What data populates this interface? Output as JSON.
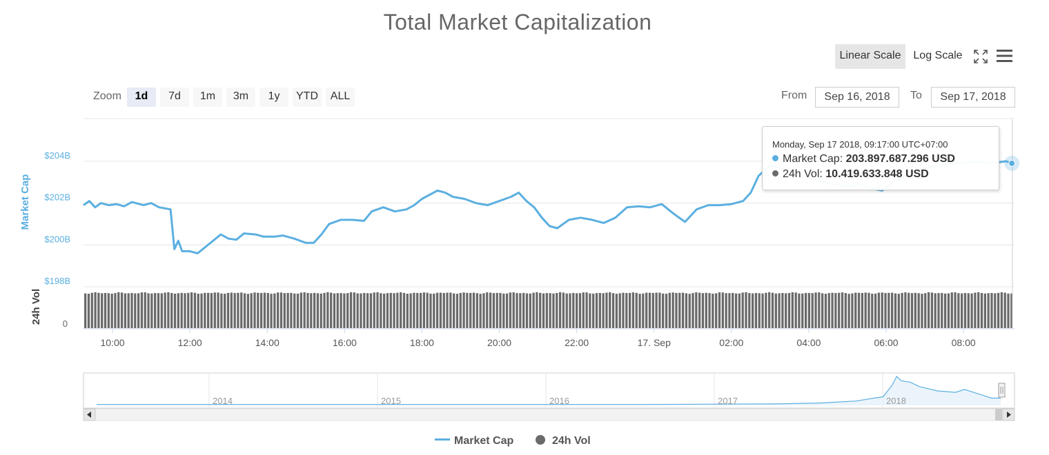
{
  "title": "Total Market Capitalization",
  "scale_buttons": {
    "linear": "Linear Scale",
    "log": "Log Scale",
    "active": "linear"
  },
  "zoom": {
    "label": "Zoom",
    "buttons": [
      "1d",
      "7d",
      "1m",
      "3m",
      "1y",
      "YTD",
      "ALL"
    ],
    "selected": "1d"
  },
  "range": {
    "from_label": "From",
    "from_value": "Sep 16, 2018",
    "to_label": "To",
    "to_value": "Sep 17, 2018"
  },
  "icons": {
    "fullscreen": "fullscreen-icon",
    "menu": "hamburger-menu-icon"
  },
  "colors": {
    "market_cap": "#5bafe0",
    "volume": "#6a6a6a",
    "grid": "#e6e6e6"
  },
  "tooltip": {
    "date": "Monday, Sep 17 2018, 09:17:00 UTC+07:00",
    "market_cap_label": "Market Cap:",
    "market_cap_value": "203.897.687.296 USD",
    "volume_label": "24h Vol:",
    "volume_value": "10.419.633.848 USD"
  },
  "legend": {
    "market_cap": "Market Cap",
    "volume": "24h Vol"
  },
  "chart_data": {
    "type": "line",
    "title": "Total Market Capitalization",
    "ylabel": "Market Cap",
    "ylabel_volume": "24h Vol",
    "y_ticks": [
      "$198B",
      "$200B",
      "$202B",
      "$204B"
    ],
    "ylim": [
      198,
      206
    ],
    "volume_y_ticks": [
      "0"
    ],
    "x_ticks": [
      "10:00",
      "12:00",
      "14:00",
      "16:00",
      "18:00",
      "20:00",
      "22:00",
      "17. Sep",
      "02:00",
      "04:00",
      "06:00",
      "08:00"
    ],
    "x_tick_hours": [
      10,
      12,
      14,
      16,
      18,
      20,
      22,
      24,
      26,
      28,
      30,
      32
    ],
    "xlim_hours": [
      9.25,
      33.3
    ],
    "series": [
      {
        "name": "Market Cap",
        "unit": "billion USD",
        "points": [
          [
            9.25,
            201.9
          ],
          [
            9.4,
            202.1
          ],
          [
            9.55,
            201.8
          ],
          [
            9.7,
            202.0
          ],
          [
            9.9,
            201.9
          ],
          [
            10.1,
            201.95
          ],
          [
            10.3,
            201.85
          ],
          [
            10.5,
            202.05
          ],
          [
            10.8,
            201.9
          ],
          [
            11.0,
            202.0
          ],
          [
            11.2,
            201.8
          ],
          [
            11.5,
            201.7
          ],
          [
            11.6,
            199.8
          ],
          [
            11.7,
            200.2
          ],
          [
            11.8,
            199.7
          ],
          [
            12.0,
            199.7
          ],
          [
            12.2,
            199.6
          ],
          [
            12.4,
            199.9
          ],
          [
            12.6,
            200.2
          ],
          [
            12.8,
            200.5
          ],
          [
            13.0,
            200.3
          ],
          [
            13.2,
            200.25
          ],
          [
            13.4,
            200.55
          ],
          [
            13.7,
            200.5
          ],
          [
            13.9,
            200.4
          ],
          [
            14.2,
            200.4
          ],
          [
            14.4,
            200.45
          ],
          [
            14.7,
            200.3
          ],
          [
            15.0,
            200.1
          ],
          [
            15.2,
            200.1
          ],
          [
            15.4,
            200.5
          ],
          [
            15.6,
            201.0
          ],
          [
            15.9,
            201.2
          ],
          [
            16.2,
            201.2
          ],
          [
            16.5,
            201.15
          ],
          [
            16.7,
            201.6
          ],
          [
            17.0,
            201.8
          ],
          [
            17.3,
            201.6
          ],
          [
            17.6,
            201.7
          ],
          [
            17.8,
            201.9
          ],
          [
            18.0,
            202.2
          ],
          [
            18.2,
            202.4
          ],
          [
            18.4,
            202.6
          ],
          [
            18.6,
            202.5
          ],
          [
            18.8,
            202.3
          ],
          [
            19.1,
            202.2
          ],
          [
            19.4,
            202.0
          ],
          [
            19.7,
            201.9
          ],
          [
            20.0,
            202.1
          ],
          [
            20.3,
            202.3
          ],
          [
            20.5,
            202.5
          ],
          [
            20.7,
            202.1
          ],
          [
            20.9,
            201.8
          ],
          [
            21.1,
            201.3
          ],
          [
            21.3,
            200.9
          ],
          [
            21.5,
            200.8
          ],
          [
            21.8,
            201.2
          ],
          [
            22.1,
            201.3
          ],
          [
            22.4,
            201.2
          ],
          [
            22.7,
            201.05
          ],
          [
            23.0,
            201.3
          ],
          [
            23.3,
            201.8
          ],
          [
            23.6,
            201.85
          ],
          [
            23.9,
            201.8
          ],
          [
            24.2,
            201.95
          ],
          [
            24.5,
            201.5
          ],
          [
            24.8,
            201.1
          ],
          [
            25.1,
            201.7
          ],
          [
            25.4,
            201.9
          ],
          [
            25.7,
            201.9
          ],
          [
            26.0,
            201.95
          ],
          [
            26.3,
            202.1
          ],
          [
            26.5,
            202.5
          ],
          [
            26.7,
            203.3
          ],
          [
            27.0,
            203.8
          ],
          [
            27.3,
            203.7
          ],
          [
            27.6,
            203.4
          ],
          [
            28.0,
            203.2
          ],
          [
            28.4,
            203.0
          ],
          [
            28.7,
            202.9
          ],
          [
            29.0,
            202.8
          ],
          [
            29.3,
            202.9
          ],
          [
            29.6,
            202.7
          ],
          [
            29.9,
            202.6
          ],
          [
            30.2,
            203.0
          ],
          [
            30.5,
            203.3
          ],
          [
            30.8,
            203.6
          ],
          [
            31.1,
            203.7
          ],
          [
            31.4,
            203.8
          ],
          [
            31.7,
            203.9
          ],
          [
            32.0,
            203.9
          ],
          [
            32.3,
            204.0
          ],
          [
            32.6,
            203.9
          ],
          [
            32.9,
            203.95
          ],
          [
            33.1,
            204.0
          ],
          [
            33.25,
            203.9
          ]
        ]
      },
      {
        "name": "24h Vol",
        "unit": "billion USD",
        "latest": 10.42
      }
    ]
  },
  "navigator": {
    "labels": [
      "2014",
      "2015",
      "2016",
      "2017",
      "2018"
    ],
    "series_points": [
      [
        0.0,
        0.03
      ],
      [
        0.2,
        0.03
      ],
      [
        0.4,
        0.03
      ],
      [
        0.6,
        0.03
      ],
      [
        0.75,
        0.05
      ],
      [
        0.8,
        0.08
      ],
      [
        0.84,
        0.15
      ],
      [
        0.87,
        0.3
      ],
      [
        0.88,
        0.7
      ],
      [
        0.885,
        1.0
      ],
      [
        0.89,
        0.85
      ],
      [
        0.9,
        0.8
      ],
      [
        0.91,
        0.65
      ],
      [
        0.93,
        0.5
      ],
      [
        0.95,
        0.45
      ],
      [
        0.96,
        0.55
      ],
      [
        0.97,
        0.45
      ],
      [
        0.98,
        0.35
      ],
      [
        0.99,
        0.25
      ],
      [
        1.0,
        0.25
      ]
    ]
  }
}
